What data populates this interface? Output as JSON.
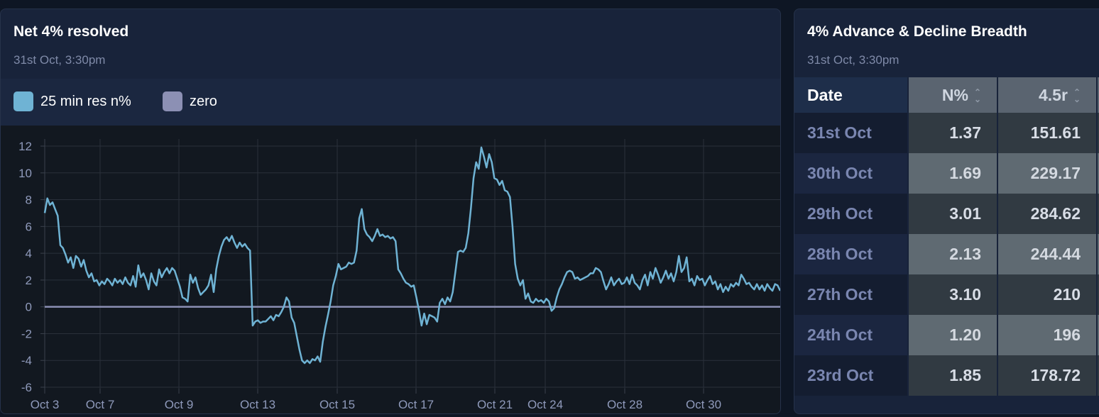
{
  "left_panel": {
    "title": "Net 4% resolved",
    "subtitle": "31st Oct, 3:30pm",
    "legend": [
      {
        "label": "25 min res n%",
        "color": "#6fb3d4"
      },
      {
        "label": "zero",
        "color": "#8c90b4"
      }
    ]
  },
  "right_panel": {
    "title": "4% Advance & Decline Breadth",
    "subtitle": "31st Oct, 3:30pm",
    "columns": [
      "Date",
      "N%",
      "4.5r"
    ],
    "rows": [
      {
        "date": "31st Oct",
        "n": "1.37",
        "r": "151.61"
      },
      {
        "date": "30th Oct",
        "n": "1.69",
        "r": "229.17"
      },
      {
        "date": "29th Oct",
        "n": "3.01",
        "r": "284.62"
      },
      {
        "date": "28th Oct",
        "n": "2.13",
        "r": "244.44"
      },
      {
        "date": "27th Oct",
        "n": "3.10",
        "r": "210"
      },
      {
        "date": "24th Oct",
        "n": "1.20",
        "r": "196"
      },
      {
        "date": "23rd Oct",
        "n": "1.85",
        "r": "178.72"
      }
    ]
  },
  "chart_data": {
    "type": "line",
    "ylim": [
      -6,
      12
    ],
    "yticks": [
      12,
      10,
      8,
      6,
      4,
      2,
      0,
      -2,
      -4,
      -6
    ],
    "x_tick_labels": [
      "Oct 3",
      "Oct 7",
      "Oct 9",
      "Oct 13",
      "Oct 15",
      "Oct 17",
      "Oct 21",
      "Oct 24",
      "Oct 28",
      "Oct 30"
    ],
    "grid": true,
    "series": [
      {
        "name": "25 min res n%",
        "color": "#6fb3d4",
        "values": [
          7.0,
          8.1,
          7.6,
          7.8,
          7.3,
          6.8,
          4.6,
          4.4,
          3.9,
          3.3,
          3.7,
          2.9,
          3.8,
          3.6,
          3.0,
          3.5,
          2.7,
          2.2,
          2.5,
          1.9,
          2.0,
          1.6,
          1.9,
          1.7,
          2.1,
          1.9,
          1.6,
          2.1,
          1.8,
          2.0,
          1.7,
          2.2,
          1.8,
          1.6,
          2.3,
          1.5,
          3.1,
          2.2,
          2.5,
          2.0,
          1.3,
          2.5,
          1.9,
          1.6,
          2.8,
          2.2,
          2.6,
          2.9,
          2.5,
          2.9,
          2.7,
          2.1,
          1.5,
          0.7,
          0.6,
          0.4,
          2.4,
          1.8,
          2.2,
          1.4,
          0.9,
          1.1,
          1.3,
          1.6,
          2.4,
          1.1,
          2.8,
          3.8,
          4.5,
          5.0,
          5.2,
          4.9,
          5.3,
          4.8,
          4.4,
          4.8,
          4.5,
          4.7,
          4.4,
          4.2,
          -1.4,
          -1.1,
          -1.0,
          -1.2,
          -1.1,
          -1.1,
          -0.9,
          -0.7,
          -1.0,
          -0.6,
          -0.7,
          -0.4,
          0.0,
          0.7,
          0.4,
          -0.8,
          -1.2,
          -2.2,
          -3.2,
          -4.0,
          -4.2,
          -4.0,
          -4.2,
          -3.9,
          -4.0,
          -3.7,
          -4.1,
          -2.6,
          -1.5,
          -0.6,
          0.4,
          1.6,
          2.3,
          3.2,
          2.8,
          2.9,
          3.0,
          3.3,
          3.2,
          3.3,
          4.2,
          6.6,
          7.3,
          5.8,
          5.4,
          5.2,
          4.9,
          5.3,
          5.8,
          5.3,
          5.4,
          5.2,
          5.3,
          5.1,
          5.2,
          4.9,
          2.8,
          2.5,
          2.1,
          1.8,
          1.7,
          1.5,
          1.6,
          0.7,
          -0.3,
          -1.4,
          -0.5,
          -1.3,
          -0.6,
          -0.7,
          -0.8,
          -1.1,
          0.3,
          0.6,
          0.2,
          0.7,
          0.4,
          1.1,
          2.6,
          4.1,
          4.2,
          4.1,
          4.4,
          5.5,
          7.4,
          9.6,
          10.8,
          10.3,
          11.9,
          11.2,
          10.4,
          11.4,
          10.8,
          9.6,
          9.5,
          9.1,
          9.4,
          8.7,
          8.6,
          8.2,
          6.0,
          3.2,
          2.1,
          1.6,
          2.0,
          0.6,
          1.0,
          0.4,
          0.3,
          0.6,
          0.4,
          0.5,
          0.3,
          0.6,
          0.4,
          -0.3,
          -0.1,
          0.7,
          1.3,
          1.7,
          2.2,
          2.6,
          2.7,
          2.6,
          2.1,
          2.2,
          2.0,
          2.1,
          2.2,
          2.3,
          2.5,
          2.5,
          2.9,
          2.8,
          2.6,
          1.9,
          1.3,
          1.7,
          2.2,
          1.6,
          1.9,
          2.1,
          1.7,
          1.8,
          2.2,
          1.7,
          2.4,
          1.8,
          1.6,
          1.3,
          2.0,
          2.4,
          1.6,
          2.6,
          2.1,
          2.9,
          2.4,
          1.8,
          2.2,
          2.7,
          2.1,
          2.5,
          1.9,
          2.6,
          3.8,
          2.6,
          2.9,
          3.7,
          1.9,
          2.1,
          1.6,
          2.3,
          2.0,
          2.1,
          1.6,
          2.0,
          2.3,
          1.7,
          1.9,
          1.3,
          1.7,
          1.1,
          1.5,
          1.2,
          1.7,
          1.5,
          1.8,
          1.6,
          2.4,
          2.1,
          1.7,
          1.8,
          1.5,
          1.3,
          1.7,
          1.3,
          1.6,
          1.2,
          1.7,
          1.4,
          1.2,
          1.7,
          1.6,
          1.2
        ]
      },
      {
        "name": "zero",
        "color": "#8c90b4",
        "values": [
          0,
          0
        ]
      }
    ]
  }
}
